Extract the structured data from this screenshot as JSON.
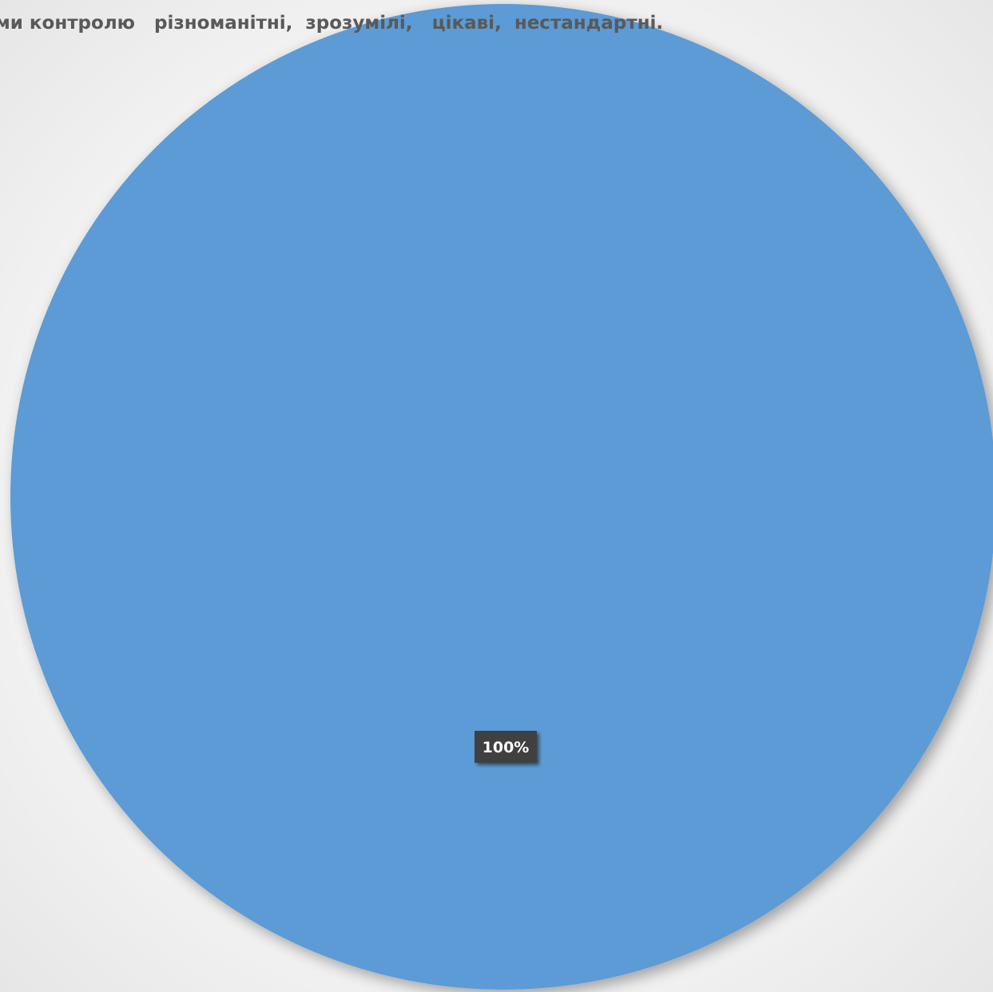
{
  "chart_data": {
    "type": "pie",
    "title": "ми контролю   різноманітні,  зрозумілі,   цікаві,  нестандартні.",
    "categories": [
      ""
    ],
    "values": [
      100
    ],
    "data_labels": [
      "100%"
    ],
    "colors": [
      "#5b9bd5"
    ],
    "legend": "none"
  }
}
